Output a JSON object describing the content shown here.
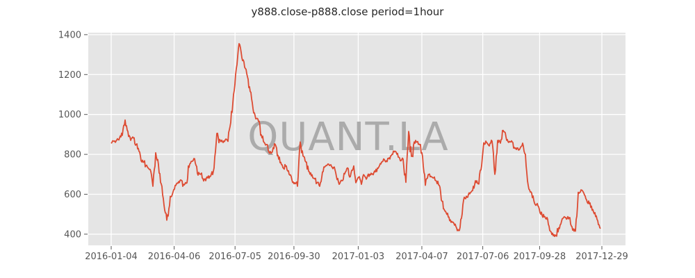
{
  "title": "y888.close-p888.close period=1hour",
  "watermark": "QUANT.LA",
  "colors": {
    "line": "#dd4b32",
    "plot_background": "#e5e5e5",
    "grid": "#ffffff",
    "tick_label": "#555555",
    "title_text": "#262626",
    "watermark_gray": "#ababab",
    "page_background": "#ffffff"
  },
  "chart_data": {
    "type": "line",
    "title": "y888.close-p888.close period=1hour",
    "series_name": "y888.close-p888.close",
    "period": "1hour",
    "x_start": "2016-01-04",
    "x_end": "2017-12-29",
    "total_days": 725,
    "x_tick_labels": [
      "2016-01-04",
      "2016-04-06",
      "2016-07-05",
      "2016-09-30",
      "2017-01-03",
      "2017-04-07",
      "2017-07-06",
      "2017-09-28",
      "2017-12-29"
    ],
    "x_tick_days": [
      0,
      93,
      183,
      270,
      365,
      459,
      549,
      633,
      725
    ],
    "y_ticks": [
      400,
      600,
      800,
      1000,
      1200,
      1400
    ],
    "ylim": [
      344,
      1410
    ],
    "grid": true,
    "legend": "none",
    "values": [
      855,
      865,
      872,
      882,
      895,
      972,
      915,
      870,
      882,
      850,
      815,
      762,
      768,
      737,
      725,
      640,
      808,
      748,
      652,
      545,
      470,
      545,
      600,
      645,
      655,
      672,
      650,
      655,
      735,
      765,
      778,
      705,
      700,
      678,
      668,
      692,
      700,
      732,
      905,
      875,
      865,
      872,
      865,
      960,
      1100,
      1230,
      1355,
      1285,
      1237,
      1190,
      1115,
      1030,
      978,
      965,
      898,
      860,
      850,
      806,
      815,
      850,
      795,
      760,
      730,
      742,
      700,
      672,
      658,
      640,
      862,
      792,
      762,
      715,
      692,
      680,
      658,
      640,
      712,
      740,
      752,
      748,
      735,
      690,
      650,
      668,
      702,
      732,
      688,
      728,
      658,
      685,
      650,
      695,
      682,
      700,
      702,
      712,
      730,
      752,
      777,
      768,
      783,
      800,
      816,
      805,
      768,
      776,
      660,
      915,
      790,
      862,
      862,
      848,
      790,
      645,
      698,
      690,
      682,
      665,
      645,
      565,
      516,
      505,
      472,
      460,
      438,
      418,
      480,
      585,
      585,
      602,
      618,
      668,
      652,
      722,
      858,
      860,
      842,
      866,
      700,
      870,
      856,
      920,
      888,
      860,
      868,
      835,
      832,
      828,
      856,
      800,
      645,
      612,
      570,
      548,
      525,
      495,
      488,
      475,
      415,
      392,
      392,
      432,
      465,
      488,
      478,
      483,
      420,
      415,
      610,
      622,
      606,
      572,
      552,
      520,
      508,
      468,
      428
    ]
  }
}
